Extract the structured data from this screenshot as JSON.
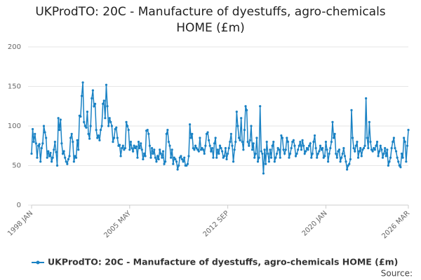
{
  "chart_data": {
    "type": "line",
    "title": "UKProdTO: 20C - Manufacture of dyestuffs, agro-chemicals HOME (£m)",
    "source": "Source:",
    "categories": [
      "1998 JAN",
      null,
      null,
      null,
      null,
      null,
      null,
      null,
      null,
      null,
      null,
      null,
      null,
      null,
      null,
      null,
      null,
      null,
      null,
      null,
      null,
      null,
      null,
      null,
      null,
      null,
      null,
      null,
      null,
      null,
      null,
      null,
      null,
      null,
      null,
      null,
      null,
      null,
      null,
      null,
      null,
      null,
      null,
      null,
      null,
      null,
      null,
      null,
      null,
      null,
      null,
      null,
      null,
      null,
      null,
      null,
      null,
      null,
      null,
      null,
      null,
      null,
      null,
      null,
      null,
      null,
      null,
      null,
      null,
      null,
      null,
      null,
      null,
      null,
      null,
      null,
      null,
      null,
      null,
      null,
      null,
      null,
      null,
      null,
      null,
      null,
      null,
      null,
      "2005 MAY",
      null,
      null,
      null,
      null,
      null,
      null,
      null,
      null,
      null,
      null,
      null,
      null,
      null,
      null,
      null,
      null,
      null,
      null,
      null,
      null,
      null,
      null,
      null,
      null,
      null,
      null,
      null,
      null,
      null,
      null,
      null,
      null,
      null,
      null,
      null,
      null,
      null,
      null,
      null,
      null,
      null,
      null,
      null,
      null,
      null,
      null,
      null,
      null,
      null,
      null,
      null,
      null,
      null,
      null,
      null,
      null,
      null,
      null,
      null,
      null,
      null,
      null,
      null,
      null,
      null,
      null,
      null,
      null,
      null,
      null,
      null,
      null,
      null,
      null,
      null,
      null,
      null,
      null,
      null,
      null,
      null,
      null,
      null,
      null,
      null,
      null,
      null,
      "2012 SEP",
      null,
      null,
      null,
      null,
      null,
      null,
      null,
      null,
      null,
      null,
      null,
      null,
      null,
      null,
      null,
      null,
      null,
      null,
      null,
      null,
      null,
      null,
      null,
      null,
      null,
      null,
      null,
      null,
      null,
      null,
      null,
      null,
      null,
      null,
      null,
      null,
      null,
      null,
      null,
      null,
      null,
      null,
      null,
      null,
      null,
      null,
      null,
      null,
      null,
      null,
      null,
      null,
      null,
      null,
      null,
      null,
      null,
      null,
      null,
      null,
      null,
      null,
      null,
      null,
      null,
      null,
      null,
      null,
      null,
      null,
      null,
      null,
      null,
      null,
      null,
      null,
      null,
      null,
      null,
      null,
      null,
      null,
      null,
      null,
      null,
      null,
      null,
      "2020 JAN",
      null,
      null,
      null,
      null,
      null,
      null,
      null,
      null,
      null,
      null,
      null,
      null,
      null,
      null,
      null,
      null,
      null,
      null,
      null,
      null,
      null,
      null,
      null,
      null,
      null,
      null,
      null,
      null,
      null,
      null,
      null,
      null,
      null,
      null,
      null,
      null,
      null,
      null,
      null,
      null,
      null,
      null,
      null,
      null,
      null,
      null,
      null,
      null,
      null,
      null,
      null,
      null,
      null,
      null,
      null,
      null,
      null,
      null,
      null,
      null,
      null,
      null,
      null,
      null,
      null,
      null,
      null,
      null,
      null,
      null,
      null,
      null,
      null,
      "2026 MAR"
    ],
    "series": [
      {
        "name": "UKProdTO: 20C - Manufacture of dyestuffs, agro-chemicals HOME (£m)",
        "color": "#1a82c4",
        "values": [
          65,
          96,
          80,
          90,
          78,
          60,
          75,
          77,
          55,
          72,
          78,
          100,
          92,
          85,
          60,
          68,
          62,
          66,
          55,
          60,
          70,
          80,
          67,
          50,
          110,
          95,
          108,
          78,
          65,
          68,
          60,
          55,
          52,
          58,
          62,
          85,
          90,
          80,
          55,
          62,
          60,
          82,
          70,
          113,
          112,
          138,
          155,
          105,
          100,
          98,
          118,
          90,
          84,
          100,
          135,
          145,
          125,
          128,
          95,
          85,
          88,
          82,
          95,
          100,
          128,
          132,
          110,
          152,
          125,
          100,
          110,
          105,
          100,
          80,
          85,
          96,
          98,
          85,
          75,
          76,
          62,
          72,
          75,
          70,
          72,
          105,
          100,
          95,
          70,
          80,
          72,
          68,
          75,
          72,
          74,
          60,
          80,
          72,
          78,
          70,
          58,
          65,
          62,
          94,
          95,
          90,
          75,
          60,
          72,
          65,
          70,
          60,
          55,
          62,
          58,
          70,
          65,
          60,
          68,
          52,
          55,
          90,
          95,
          80,
          75,
          60,
          70,
          52,
          60,
          58,
          55,
          45,
          50,
          60,
          62,
          58,
          55,
          60,
          50,
          50,
          52,
          62,
          102,
          85,
          90,
          72,
          70,
          75,
          72,
          70,
          68,
          85,
          70,
          72,
          70,
          65,
          75,
          90,
          92,
          82,
          75,
          68,
          72,
          60,
          78,
          85,
          60,
          70,
          65,
          75,
          72,
          68,
          60,
          62,
          72,
          58,
          65,
          72,
          80,
          90,
          75,
          55,
          70,
          80,
          118,
          100,
          85,
          82,
          110,
          80,
          70,
          95,
          125,
          120,
          80,
          75,
          82,
          100,
          70,
          78,
          60,
          65,
          85,
          55,
          60,
          125,
          68,
          65,
          40,
          70,
          52,
          80,
          65,
          55,
          70,
          60,
          75,
          80,
          55,
          60,
          65,
          72,
          70,
          60,
          88,
          85,
          70,
          65,
          70,
          85,
          80,
          60,
          65,
          72,
          80,
          82,
          75,
          62,
          65,
          70,
          75,
          80,
          70,
          82,
          75,
          65,
          68,
          72,
          70,
          75,
          78,
          60,
          65,
          80,
          88,
          72,
          60,
          65,
          68,
          75,
          70,
          72,
          60,
          62,
          80,
          70,
          55,
          65,
          72,
          80,
          105,
          85,
          90,
          65,
          60,
          68,
          70,
          55,
          60,
          65,
          72,
          62,
          55,
          45,
          50,
          52,
          58,
          120,
          85,
          72,
          68,
          75,
          80,
          60,
          68,
          72,
          62,
          70,
          72,
          75,
          135,
          85,
          72,
          105,
          80,
          70,
          68,
          72,
          70,
          75,
          80,
          62,
          68,
          75,
          70,
          60,
          65,
          72,
          62,
          70,
          50,
          55,
          60,
          72,
          80,
          85,
          72,
          68,
          60,
          55,
          50,
          48,
          65,
          60,
          85,
          80,
          55,
          75,
          95
        ]
      }
    ],
    "ylim": [
      0,
      200
    ],
    "yticks": [
      0,
      50,
      100,
      150,
      200
    ],
    "grid": true
  }
}
